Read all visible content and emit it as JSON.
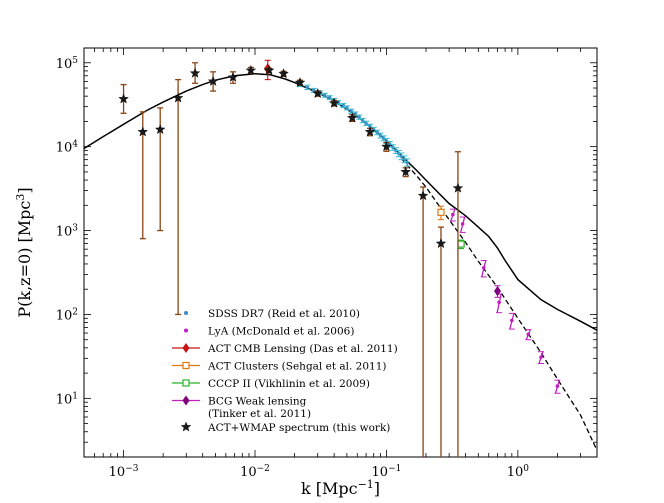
{
  "chart_data": {
    "type": "scatter",
    "xscale": "log",
    "yscale": "log",
    "xlim": [
      0.0005,
      4.0
    ],
    "ylim": [
      2.0,
      150000
    ],
    "xlabel": "k [Mpc",
    "xlabel_sup": "−1",
    "xlabel_tail": "]",
    "ylabel": "P(k,z=0) [Mpc",
    "ylabel_sup": "3",
    "ylabel_tail": "]",
    "x_ticks": [
      {
        "value": 0.001,
        "base": "10",
        "exp": "−3"
      },
      {
        "value": 0.01,
        "base": "10",
        "exp": "−2"
      },
      {
        "value": 0.1,
        "base": "10",
        "exp": "−1"
      },
      {
        "value": 1.0,
        "base": "10",
        "exp": "0"
      }
    ],
    "y_ticks": [
      {
        "value": 10,
        "base": "10",
        "exp": "1"
      },
      {
        "value": 100,
        "base": "10",
        "exp": "2"
      },
      {
        "value": 1000,
        "base": "10",
        "exp": "3"
      },
      {
        "value": 10000,
        "base": "10",
        "exp": "4"
      },
      {
        "value": 100000,
        "base": "10",
        "exp": "5"
      }
    ],
    "colors": {
      "sdss": "#3a8fc6",
      "sdss_err": "#40c0d0",
      "lya": "#c020c0",
      "act_cmb": "#c81414",
      "act_clusters": "#e07810",
      "cccp": "#28b428",
      "bcg": "#c020c0",
      "bcg_marker": "#800080",
      "actwmap_err": "#8b4513",
      "star": "#1a1a1a",
      "model": "#000000"
    },
    "model_solid": [
      [
        0.0005,
        9500
      ],
      [
        0.0007,
        13200
      ],
      [
        0.001,
        18500
      ],
      [
        0.0015,
        27000
      ],
      [
        0.002,
        34000
      ],
      [
        0.003,
        46000
      ],
      [
        0.004,
        55000
      ],
      [
        0.005,
        62000
      ],
      [
        0.007,
        70000
      ],
      [
        0.01,
        74000
      ],
      [
        0.013,
        72000
      ],
      [
        0.017,
        64000
      ],
      [
        0.02,
        58000
      ],
      [
        0.03,
        44000
      ],
      [
        0.04,
        35000
      ],
      [
        0.05,
        28000
      ],
      [
        0.07,
        19000
      ],
      [
        0.1,
        12000
      ],
      [
        0.13,
        7800
      ],
      [
        0.17,
        5200
      ],
      [
        0.2,
        4000
      ],
      [
        0.25,
        2800
      ],
      [
        0.3,
        2100
      ],
      [
        0.4,
        1500
      ],
      [
        0.5,
        1100
      ],
      [
        0.6,
        850
      ],
      [
        0.7,
        620
      ],
      [
        0.8,
        440
      ],
      [
        1.0,
        260
      ],
      [
        1.5,
        150
      ],
      [
        2.0,
        115
      ],
      [
        3.0,
        83
      ],
      [
        4.0,
        65
      ]
    ],
    "model_dashed": [
      [
        0.13,
        7200
      ],
      [
        0.17,
        4500
      ],
      [
        0.2,
        3300
      ],
      [
        0.25,
        2000
      ],
      [
        0.3,
        1350
      ],
      [
        0.4,
        720
      ],
      [
        0.5,
        430
      ],
      [
        0.7,
        210
      ],
      [
        1.0,
        90
      ],
      [
        1.5,
        35
      ],
      [
        2.0,
        17
      ],
      [
        3.0,
        6.3
      ],
      [
        4.0,
        2.4
      ]
    ],
    "series": [
      {
        "name": "SDSS DR7 (Reid et al. 2010)",
        "marker": "dot",
        "points": [
          [
            0.022,
            55000,
            3000
          ],
          [
            0.025,
            51000,
            3000
          ],
          [
            0.028,
            47000,
            2500
          ],
          [
            0.031,
            44000,
            2500
          ],
          [
            0.034,
            41000,
            2200
          ],
          [
            0.037,
            38500,
            2000
          ],
          [
            0.04,
            35500,
            2000
          ],
          [
            0.043,
            33500,
            1800
          ],
          [
            0.047,
            31000,
            1700
          ],
          [
            0.05,
            29000,
            1600
          ],
          [
            0.054,
            26500,
            1500
          ],
          [
            0.058,
            24500,
            1400
          ],
          [
            0.062,
            22500,
            1300
          ],
          [
            0.066,
            20500,
            1200
          ],
          [
            0.07,
            19000,
            1100
          ],
          [
            0.075,
            17500,
            1000
          ],
          [
            0.08,
            16000,
            1000
          ],
          [
            0.085,
            14800,
            900
          ],
          [
            0.09,
            13600,
            900
          ],
          [
            0.095,
            12600,
            850
          ],
          [
            0.1,
            11700,
            800
          ],
          [
            0.106,
            10700,
            800
          ],
          [
            0.112,
            9800,
            750
          ],
          [
            0.118,
            9000,
            700
          ],
          [
            0.124,
            8300,
            700
          ],
          [
            0.13,
            7700,
            700
          ],
          [
            0.137,
            7100,
            650
          ],
          [
            0.144,
            6500,
            650
          ]
        ]
      },
      {
        "name": "LyA (McDonald et al. 2006)",
        "marker": "dot",
        "points": [
          [
            0.32,
            1550,
            250
          ],
          [
            0.38,
            1200,
            250
          ],
          [
            0.55,
            360,
            80
          ],
          [
            0.72,
            140,
            35
          ],
          [
            0.9,
            85,
            18
          ],
          [
            1.2,
            58,
            8
          ],
          [
            1.5,
            31,
            5
          ],
          [
            2.0,
            14,
            2.5
          ]
        ]
      },
      {
        "name": "ACT CMB Lensing (Das et al. 2011)",
        "marker": "diamond",
        "points": [
          [
            0.0125,
            85000,
            22000
          ]
        ]
      },
      {
        "name": "ACT Clusters (Sehgal et al. 2011)",
        "marker": "square",
        "points": [
          [
            0.26,
            1650,
            300
          ]
        ]
      },
      {
        "name": "CCCP II (Vikhlinin et al. 2009)",
        "marker": "square",
        "points": [
          [
            0.37,
            690,
            80
          ]
        ]
      },
      {
        "name": "BCG Weak lensing\n(Tinker et al. 2011)",
        "marker": "diamond",
        "points": [
          [
            0.7,
            190,
            30
          ]
        ]
      },
      {
        "name": "ACT+WMAP spectrum (this work)",
        "marker": "star",
        "points": [
          [
            0.001,
            37000,
            12000,
            18000
          ],
          [
            0.0014,
            15000,
            14200,
            11000
          ],
          [
            0.0019,
            16000,
            15000,
            13000
          ],
          [
            0.0026,
            38000,
            37900,
            25000
          ],
          [
            0.0035,
            75000,
            18000,
            25000
          ],
          [
            0.0048,
            60000,
            14000,
            18000
          ],
          [
            0.0068,
            67000,
            10000,
            11000
          ],
          [
            0.0093,
            81000,
            6000,
            7000
          ],
          [
            0.0128,
            81000,
            5000,
            5000
          ],
          [
            0.0165,
            74000,
            5000,
            5000
          ],
          [
            0.022,
            58000,
            4000,
            4000
          ],
          [
            0.03,
            43000,
            3000,
            3000
          ],
          [
            0.04,
            33000,
            2500,
            2500
          ],
          [
            0.055,
            22000,
            2000,
            2000
          ],
          [
            0.075,
            15000,
            1500,
            1500
          ],
          [
            0.1,
            10000,
            1200,
            1200
          ],
          [
            0.14,
            5000,
            600,
            600
          ],
          [
            0.19,
            2600,
            2599,
            700
          ],
          [
            0.26,
            700,
            699,
            400
          ],
          [
            0.35,
            3200,
            3199,
            5500
          ]
        ]
      }
    ],
    "legend": {
      "position": "lower-left",
      "entries": [
        {
          "key": "sdss",
          "label": "SDSS DR7 (Reid et al. 2010)"
        },
        {
          "key": "lya",
          "label": "LyA (McDonald et al. 2006)"
        },
        {
          "key": "act_cmb",
          "label": "ACT CMB Lensing (Das et al. 2011)"
        },
        {
          "key": "act_clusters",
          "label": "ACT Clusters (Sehgal et al. 2011)"
        },
        {
          "key": "cccp",
          "label": "CCCP II (Vikhlinin et al. 2009)"
        },
        {
          "key": "bcg",
          "label": "BCG Weak lensing"
        },
        {
          "key": "bcg2",
          "label": "(Tinker et al. 2011)"
        },
        {
          "key": "actwmap",
          "label": "ACT+WMAP spectrum (this work)"
        }
      ]
    }
  }
}
